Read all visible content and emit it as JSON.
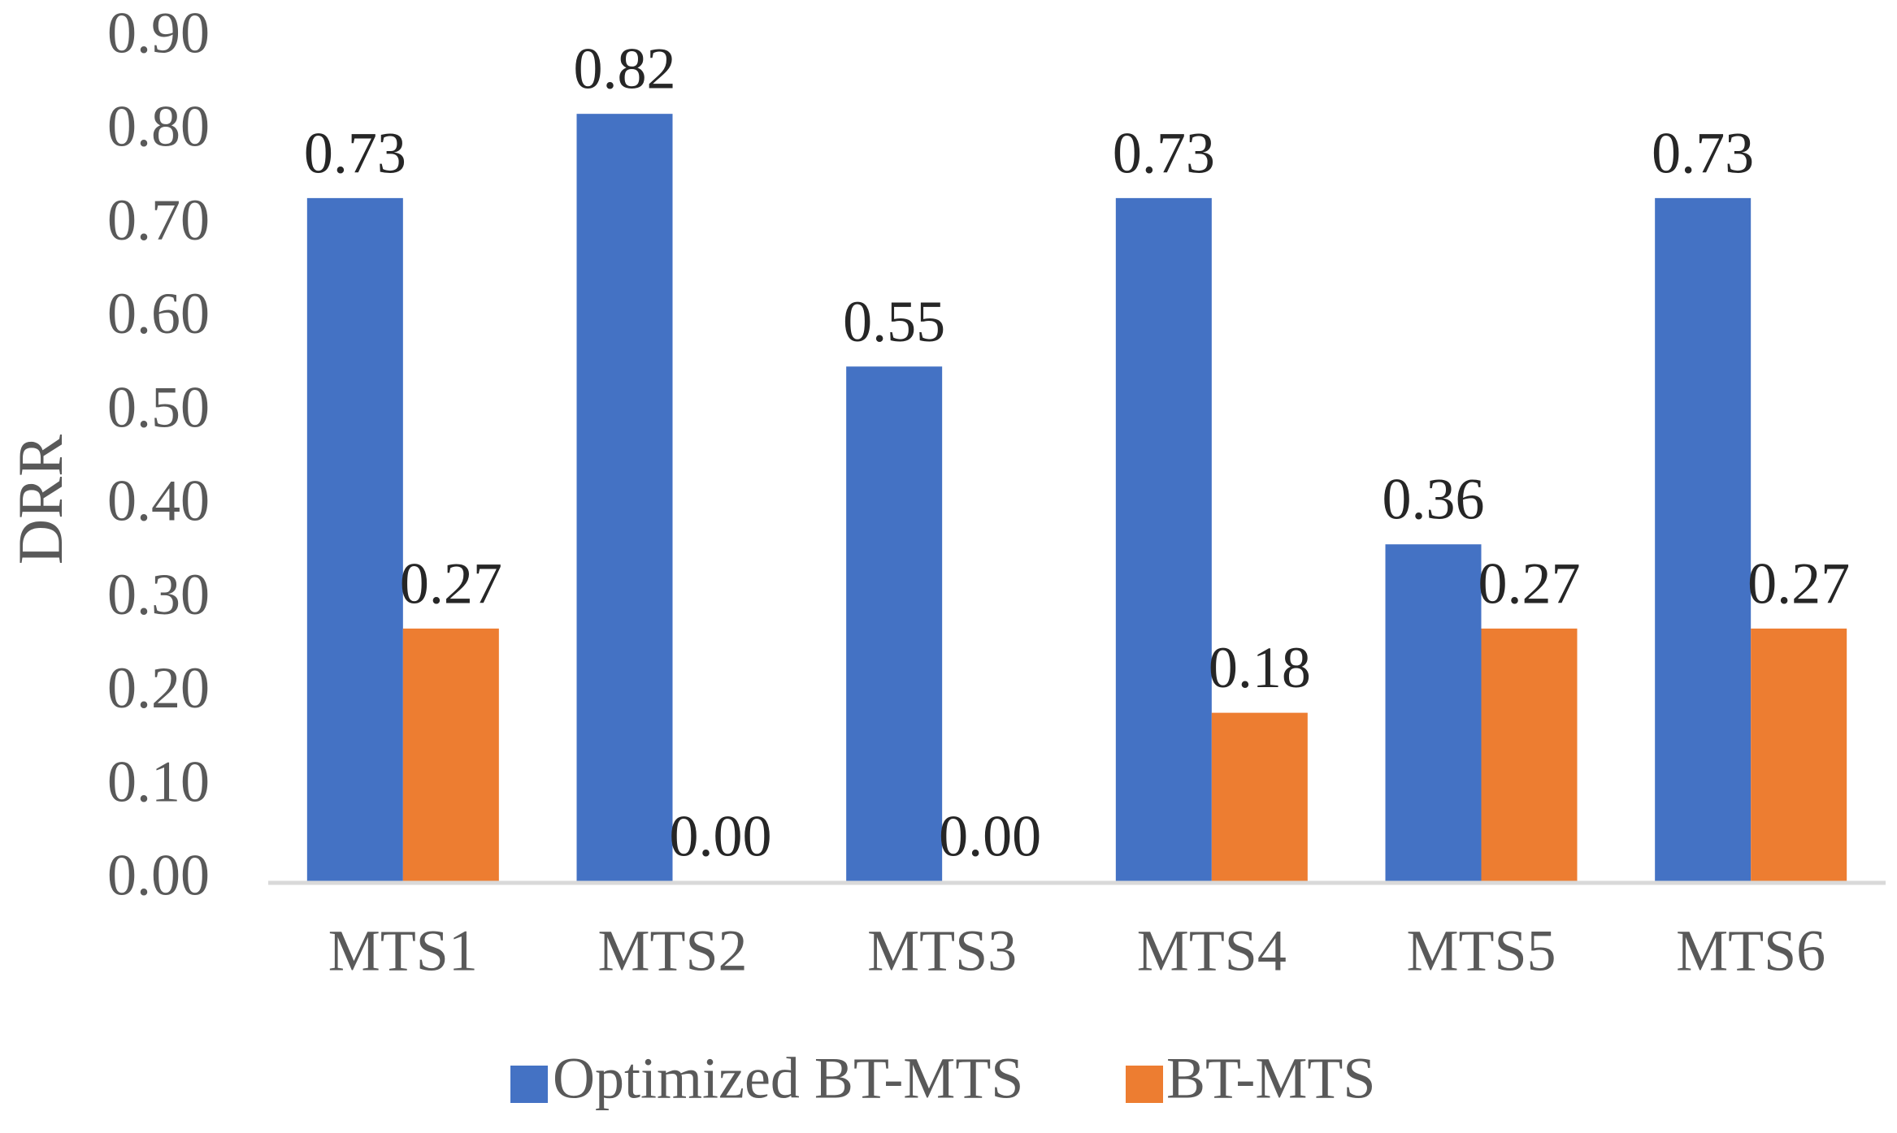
{
  "chart_data": {
    "type": "bar",
    "title": "",
    "xlabel": "",
    "ylabel": "DRR",
    "ylim": [
      0,
      0.9
    ],
    "yticks": [
      "0.00",
      "0.10",
      "0.20",
      "0.30",
      "0.40",
      "0.50",
      "0.60",
      "0.70",
      "0.80",
      "0.90"
    ],
    "categories": [
      "MTS1",
      "MTS2",
      "MTS3",
      "MTS4",
      "MTS5",
      "MTS6"
    ],
    "series": [
      {
        "name": "Optimized BT-MTS",
        "color": "#4472C4",
        "values": [
          0.73,
          0.82,
          0.55,
          0.73,
          0.36,
          0.73
        ],
        "labels": [
          "0.73",
          "0.82",
          "0.55",
          "0.73",
          "0.36",
          "0.73"
        ]
      },
      {
        "name": "BT-MTS",
        "color": "#ED7D31",
        "values": [
          0.27,
          0.0,
          0.0,
          0.18,
          0.27,
          0.27
        ],
        "labels": [
          "0.27",
          "0.00",
          "0.00",
          "0.18",
          "0.27",
          "0.27"
        ]
      }
    ],
    "grid": false,
    "legend_position": "bottom"
  }
}
